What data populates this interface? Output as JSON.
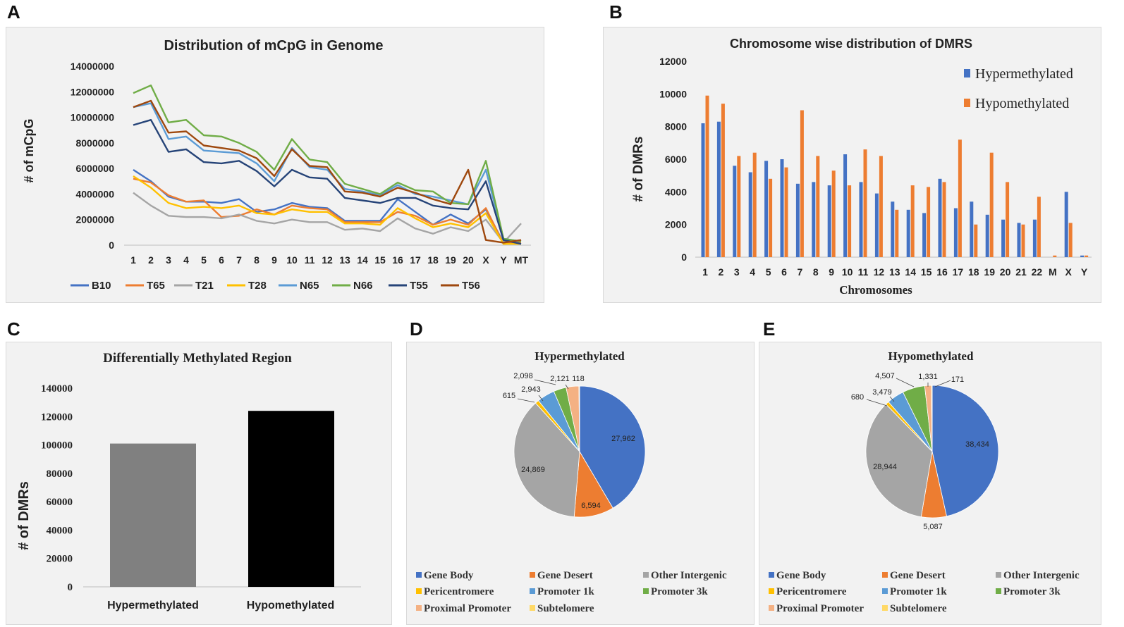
{
  "panels": {
    "A": {
      "letter": "A",
      "chart_data": {
        "type": "line",
        "title": "Distribution of mCpG in Genome",
        "xlabel": "",
        "ylabel": "# of mCpG",
        "ylim": [
          0,
          14000000
        ],
        "yticks": [
          "0",
          "2000000",
          "4000000",
          "6000000",
          "8000000",
          "10000000",
          "12000000",
          "14000000"
        ],
        "categories": [
          "1",
          "2",
          "3",
          "4",
          "5",
          "6",
          "7",
          "8",
          "9",
          "10",
          "11",
          "12",
          "13",
          "14",
          "15",
          "16",
          "17",
          "18",
          "19",
          "20",
          "X",
          "Y",
          "MT"
        ],
        "series": [
          {
            "name": "B10",
            "color": "#4472c4",
            "values": [
              5900000,
              5000000,
              3800000,
              3400000,
              3400000,
              3300000,
              3600000,
              2600000,
              2800000,
              3300000,
              3000000,
              2900000,
              1900000,
              1900000,
              1900000,
              3600000,
              2600000,
              1600000,
              2400000,
              1700000,
              2800000,
              200000,
              200000
            ]
          },
          {
            "name": "T65",
            "color": "#ed7d31",
            "values": [
              5200000,
              4900000,
              3900000,
              3400000,
              3500000,
              2200000,
              2300000,
              2800000,
              2400000,
              3100000,
              2900000,
              2800000,
              1800000,
              1800000,
              1800000,
              2600000,
              2300000,
              1600000,
              2000000,
              1600000,
              2900000,
              100000,
              200000
            ]
          },
          {
            "name": "T21",
            "color": "#a5a5a5",
            "values": [
              4100000,
              3100000,
              2300000,
              2200000,
              2200000,
              2100000,
              2400000,
              1900000,
              1700000,
              2000000,
              1800000,
              1800000,
              1200000,
              1300000,
              1100000,
              2100000,
              1300000,
              900000,
              1400000,
              1100000,
              2000000,
              200000,
              1700000
            ]
          },
          {
            "name": "T28",
            "color": "#ffc000",
            "values": [
              5400000,
              4500000,
              3300000,
              2900000,
              3000000,
              2900000,
              3100000,
              2500000,
              2400000,
              2800000,
              2600000,
              2600000,
              1700000,
              1700000,
              1600000,
              2900000,
              2100000,
              1400000,
              1700000,
              1400000,
              2500000,
              100000,
              100000
            ]
          },
          {
            "name": "N65",
            "color": "#5b9bd5",
            "values": [
              10800000,
              11100000,
              8300000,
              8500000,
              7400000,
              7300000,
              7200000,
              6400000,
              5000000,
              7600000,
              6100000,
              5900000,
              4400000,
              4200000,
              3900000,
              4700000,
              4000000,
              3800000,
              3500000,
              3200000,
              5900000,
              500000,
              300000
            ]
          },
          {
            "name": "N66",
            "color": "#70ad47",
            "values": [
              11900000,
              12500000,
              9600000,
              9800000,
              8600000,
              8500000,
              8000000,
              7300000,
              5900000,
              8300000,
              6700000,
              6500000,
              4800000,
              4400000,
              4000000,
              4900000,
              4300000,
              4200000,
              3300000,
              3200000,
              6600000,
              500000,
              300000
            ]
          },
          {
            "name": "T55",
            "color": "#264478",
            "values": [
              9400000,
              9800000,
              7300000,
              7500000,
              6500000,
              6400000,
              6600000,
              5800000,
              4600000,
              5900000,
              5300000,
              5200000,
              3700000,
              3500000,
              3300000,
              3700000,
              3700000,
              3100000,
              2900000,
              2800000,
              5000000,
              400000,
              100000
            ]
          },
          {
            "name": "T56",
            "color": "#9e480e",
            "values": [
              10800000,
              11300000,
              8800000,
              8900000,
              7800000,
              7600000,
              7400000,
              6800000,
              5400000,
              7500000,
              6200000,
              6100000,
              4200000,
              4100000,
              3800000,
              4500000,
              4100000,
              3600000,
              3200000,
              5900000,
              400000,
              200000,
              400000
            ]
          }
        ]
      }
    },
    "B": {
      "letter": "B",
      "chart_data": {
        "type": "bar",
        "title": "Chromosome wise distribution of DMRS",
        "xlabel": "Chromosomes",
        "ylabel": "# of DMRs",
        "ylim": [
          0,
          12000
        ],
        "yticks": [
          "0",
          "2000",
          "4000",
          "6000",
          "8000",
          "10000",
          "12000"
        ],
        "categories": [
          "1",
          "2",
          "3",
          "4",
          "5",
          "6",
          "7",
          "8",
          "9",
          "10",
          "11",
          "12",
          "13",
          "14",
          "15",
          "16",
          "17",
          "18",
          "19",
          "20",
          "21",
          "22",
          "M",
          "X",
          "Y"
        ],
        "series": [
          {
            "name": "Hypermethylated",
            "color": "#4472c4",
            "values": [
              8200,
              8300,
              5600,
              5200,
              5900,
              6000,
              4500,
              4600,
              4400,
              6300,
              4600,
              3900,
              3400,
              2900,
              2700,
              4800,
              3000,
              3400,
              2600,
              2300,
              2100,
              2300,
              0,
              4000,
              100
            ]
          },
          {
            "name": "Hypomethylated",
            "color": "#ed7d31",
            "values": [
              9900,
              9400,
              6200,
              6400,
              4800,
              5500,
              9000,
              6200,
              5300,
              4400,
              6600,
              6200,
              2900,
              4400,
              4300,
              4600,
              7200,
              2000,
              6400,
              4600,
              2000,
              3700,
              100,
              2100,
              100
            ]
          }
        ]
      }
    },
    "C": {
      "letter": "C",
      "chart_data": {
        "type": "bar",
        "title": "Differentially Methylated Region",
        "xlabel": "",
        "ylabel": "# of DMRs",
        "ylim": [
          0,
          140000
        ],
        "yticks": [
          "0",
          "20000",
          "40000",
          "60000",
          "80000",
          "100000",
          "120000",
          "140000"
        ],
        "categories": [
          "Hypermethylated",
          "Hypomethylated"
        ],
        "values": [
          101000,
          124000
        ],
        "colors": [
          "#808080",
          "#000000"
        ]
      }
    },
    "D": {
      "letter": "D",
      "chart_data": {
        "type": "pie",
        "title": "Hypermethylated",
        "slices": [
          {
            "label": "Gene Body",
            "value": 27962,
            "text": "27,962",
            "color": "#4472c4"
          },
          {
            "label": "Gene Desert",
            "value": 6594,
            "text": "6,594",
            "color": "#ed7d31"
          },
          {
            "label": "Other Intergenic",
            "value": 24869,
            "text": "24,869",
            "color": "#a5a5a5"
          },
          {
            "label": "Pericentromere",
            "value": 615,
            "text": "615",
            "color": "#ffc000"
          },
          {
            "label": "Promoter 1k",
            "value": 2943,
            "text": "2,943",
            "color": "#5b9bd5"
          },
          {
            "label": "Promoter 3k",
            "value": 2098,
            "text": "2,098",
            "color": "#70ad47"
          },
          {
            "label": "Proximal Promoter",
            "value": 2121,
            "text": "2,121",
            "color": "#f4b183"
          },
          {
            "label": "Subtelomere",
            "value": 118,
            "text": "118",
            "color": "#ffd966"
          }
        ]
      }
    },
    "E": {
      "letter": "E",
      "chart_data": {
        "type": "pie",
        "title": "Hypomethylated",
        "slices": [
          {
            "label": "Gene Body",
            "value": 38434,
            "text": "38,434",
            "color": "#4472c4"
          },
          {
            "label": "Gene Desert",
            "value": 5087,
            "text": "5,087",
            "color": "#ed7d31"
          },
          {
            "label": "Other Intergenic",
            "value": 28944,
            "text": "28,944",
            "color": "#a5a5a5"
          },
          {
            "label": "Pericentromere",
            "value": 680,
            "text": "680",
            "color": "#ffc000"
          },
          {
            "label": "Promoter 1k",
            "value": 3479,
            "text": "3,479",
            "color": "#5b9bd5"
          },
          {
            "label": "Promoter 3k",
            "value": 4507,
            "text": "4,507",
            "color": "#70ad47"
          },
          {
            "label": "Proximal Promoter",
            "value": 1331,
            "text": "1,331",
            "color": "#f4b183"
          },
          {
            "label": "Subtelomere",
            "value": 171,
            "text": "171",
            "color": "#ffd966"
          }
        ]
      }
    }
  }
}
